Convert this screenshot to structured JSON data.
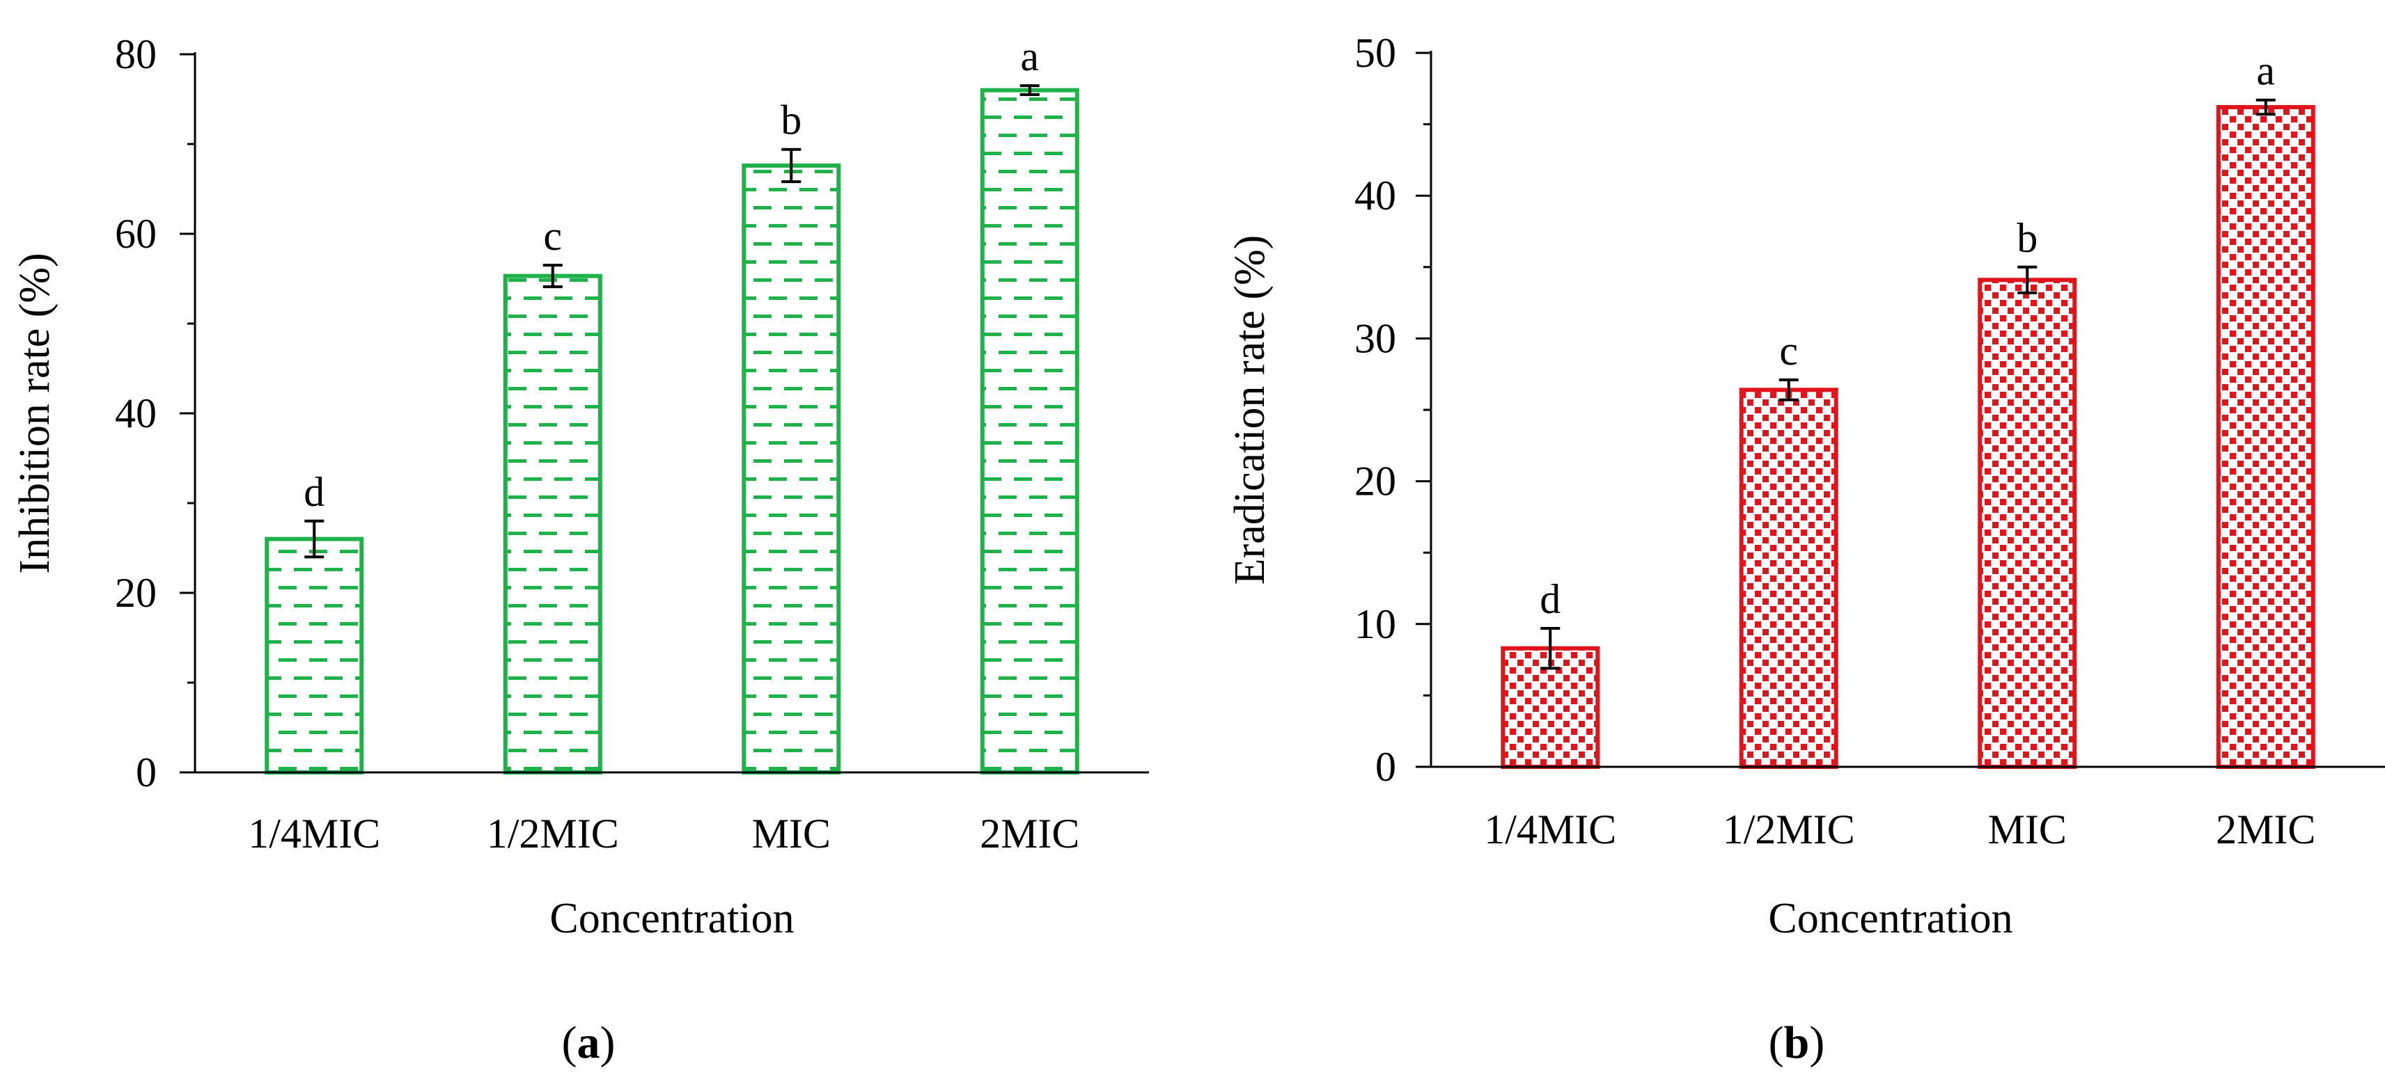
{
  "chart_data": [
    {
      "type": "bar",
      "panel_label": "a",
      "categories": [
        "1/4MIC",
        "1/2MIC",
        "MIC",
        "2MIC"
      ],
      "values": [
        26.0,
        55.3,
        67.6,
        76.0
      ],
      "errors": [
        2.0,
        1.2,
        1.8,
        0.5
      ],
      "significance": [
        "d",
        "c",
        "b",
        "a"
      ],
      "xlabel": "Concentration",
      "ylabel": "Inhibition rate (%)",
      "ylim": [
        0,
        80
      ],
      "major_ticks": [
        0,
        20,
        40,
        60,
        80
      ],
      "minor_tick_step": 10,
      "yticklabels": [
        "0",
        "20",
        "40",
        "60",
        "80"
      ],
      "color": "#1fb14a",
      "pattern": "dashes"
    },
    {
      "type": "bar",
      "panel_label": "b",
      "categories": [
        "1/4MIC",
        "1/2MIC",
        "MIC",
        "2MIC"
      ],
      "values": [
        8.3,
        26.4,
        34.1,
        46.2
      ],
      "errors": [
        1.4,
        0.7,
        0.9,
        0.5
      ],
      "significance": [
        "d",
        "c",
        "b",
        "a"
      ],
      "xlabel": "Concentration",
      "ylabel": "Eradication rate (%)",
      "ylim": [
        0,
        50
      ],
      "major_ticks": [
        0,
        10,
        20,
        30,
        40,
        50
      ],
      "minor_tick_step": 5,
      "yticklabels": [
        "0",
        "10",
        "20",
        "30",
        "40",
        "50"
      ],
      "color": "#e0141b",
      "pattern": "dots"
    }
  ]
}
